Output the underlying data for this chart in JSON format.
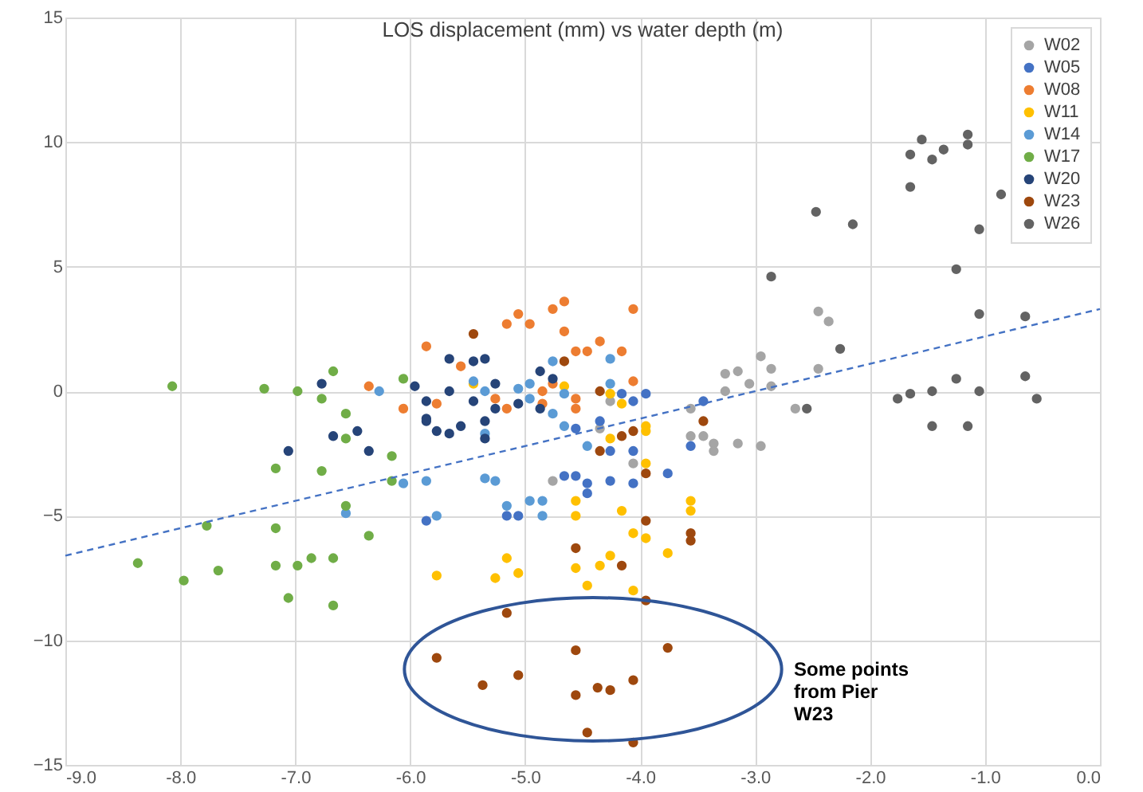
{
  "chart_data": {
    "type": "scatter",
    "title": "LOS displacement (mm) vs water depth (m)",
    "xlim": [
      -9.0,
      0.0
    ],
    "xticks": [
      {
        "value": -9,
        "label": "-9.0"
      },
      {
        "value": -8,
        "label": "-8.0"
      },
      {
        "value": -7,
        "label": "-7.0"
      },
      {
        "value": -6,
        "label": "-6.0"
      },
      {
        "value": -5,
        "label": "-5.0"
      },
      {
        "value": -4,
        "label": "-4.0"
      },
      {
        "value": -3,
        "label": "-3.0"
      },
      {
        "value": -2,
        "label": "-2.0"
      },
      {
        "value": -1,
        "label": "-1.0"
      },
      {
        "value": 0,
        "label": "0.0"
      }
    ],
    "ylim": [
      -15,
      15
    ],
    "yticks": [
      -15,
      -10,
      -5,
      0,
      5,
      10,
      15
    ],
    "grid": true,
    "legend": "top right",
    "marker": "circle",
    "annotations": [
      "Some points from Pier W23"
    ],
    "series": [
      {
        "name": "W02",
        "color": "#a5a5a5",
        "x": [
          -4.76,
          -4.26,
          -4.35,
          -4.06,
          -3.56,
          -3.56,
          -3.45,
          -3.36,
          -3.36,
          -3.26,
          -3.26,
          -3.15,
          -3.15,
          -3.05,
          -2.95,
          -2.95,
          -2.86,
          -2.86,
          -2.65,
          -2.45,
          -2.36,
          -2.45
        ],
        "values": [
          -3.6,
          -0.4,
          -1.5,
          -2.9,
          -0.7,
          -1.8,
          -1.8,
          -2.1,
          -2.4,
          0.7,
          0.0,
          0.8,
          -2.1,
          0.3,
          1.4,
          -2.2,
          0.9,
          0.2,
          -0.7,
          3.2,
          2.8,
          0.9
        ]
      },
      {
        "name": "W05",
        "color": "#4472c4",
        "x": [
          -5.86,
          -5.16,
          -5.06,
          -4.66,
          -4.56,
          -4.56,
          -4.46,
          -4.46,
          -4.35,
          -4.26,
          -4.26,
          -4.16,
          -4.06,
          -4.06,
          -4.06,
          -3.95,
          -3.76,
          -3.56,
          -3.45
        ],
        "values": [
          -5.2,
          -5.0,
          -5.0,
          -3.4,
          -3.4,
          -1.5,
          -3.7,
          -4.1,
          -1.2,
          -2.4,
          -3.6,
          -0.1,
          -0.4,
          -2.4,
          -3.7,
          -0.1,
          -3.3,
          -2.2,
          -0.4
        ]
      },
      {
        "name": "W08",
        "color": "#ed7d31",
        "x": [
          -5.86,
          -6.36,
          -6.06,
          -5.77,
          -5.56,
          -5.16,
          -5.06,
          -4.96,
          -4.76,
          -4.66,
          -4.66,
          -4.56,
          -4.46,
          -4.35,
          -4.16,
          -4.06,
          -4.06,
          -5.26,
          -5.16,
          -4.85,
          -4.85,
          -4.76,
          -4.56,
          -4.56
        ],
        "values": [
          1.8,
          0.2,
          -0.7,
          -0.5,
          1.0,
          2.7,
          3.1,
          2.7,
          3.3,
          3.6,
          2.4,
          1.6,
          1.6,
          2.0,
          1.6,
          3.3,
          0.4,
          -0.3,
          -0.7,
          0.0,
          -0.5,
          0.3,
          -0.3,
          -0.7
        ]
      },
      {
        "name": "W11",
        "color": "#ffc000",
        "x": [
          -5.77,
          -5.45,
          -4.66,
          -4.26,
          -4.16,
          -4.26,
          -3.95,
          -3.95,
          -3.95,
          -4.56,
          -4.56,
          -4.16,
          -4.06,
          -3.95,
          -3.56,
          -3.56,
          -3.76,
          -4.26,
          -4.35,
          -4.56,
          -5.16,
          -5.06,
          -5.26,
          -4.46,
          -4.06
        ],
        "values": [
          -7.4,
          0.3,
          0.2,
          -0.1,
          -0.5,
          -1.9,
          -1.4,
          -1.6,
          -2.9,
          -4.4,
          -5.0,
          -4.8,
          -5.7,
          -5.9,
          -4.4,
          -4.8,
          -6.5,
          -6.6,
          -7.0,
          -7.1,
          -6.7,
          -7.3,
          -7.5,
          -7.8,
          -8.0
        ]
      },
      {
        "name": "W14",
        "color": "#5b9bd5",
        "x": [
          -6.27,
          -6.06,
          -5.86,
          -5.77,
          -6.56,
          -5.45,
          -5.35,
          -5.35,
          -5.35,
          -5.26,
          -5.16,
          -5.06,
          -4.96,
          -4.96,
          -4.76,
          -4.76,
          -4.66,
          -4.66,
          -4.96,
          -4.85,
          -4.85,
          -4.46,
          -4.26,
          -4.26
        ],
        "values": [
          0.0,
          -3.7,
          -3.6,
          -5.0,
          -4.9,
          0.4,
          0.0,
          -1.7,
          -3.5,
          -3.6,
          -4.6,
          0.1,
          0.3,
          -0.3,
          1.2,
          -0.9,
          -0.1,
          -1.4,
          -4.4,
          -4.4,
          -5.0,
          -2.2,
          1.3,
          0.3
        ]
      },
      {
        "name": "W17",
        "color": "#70ad47",
        "x": [
          -8.07,
          -7.27,
          -6.98,
          -6.67,
          -6.77,
          -6.56,
          -6.56,
          -6.06,
          -6.16,
          -7.17,
          -6.77,
          -6.16,
          -6.56,
          -7.77,
          -7.17,
          -6.36,
          -8.37,
          -7.97,
          -7.67,
          -7.17,
          -6.98,
          -6.86,
          -6.67,
          -7.06,
          -6.67
        ],
        "values": [
          0.2,
          0.1,
          0.0,
          0.8,
          -0.3,
          -0.9,
          -1.9,
          0.5,
          -2.6,
          -3.1,
          -3.2,
          -3.6,
          -4.6,
          -5.4,
          -5.5,
          -5.8,
          -6.9,
          -7.6,
          -7.2,
          -7.0,
          -7.0,
          -6.7,
          -6.7,
          -8.3,
          -8.6
        ]
      },
      {
        "name": "W20",
        "color": "#264478",
        "x": [
          -6.77,
          -5.96,
          -5.86,
          -5.86,
          -5.77,
          -6.67,
          -6.46,
          -6.36,
          -7.06,
          -5.66,
          -5.45,
          -5.35,
          -5.66,
          -5.45,
          -5.26,
          -5.26,
          -5.86,
          -5.66,
          -5.56,
          -5.35,
          -5.35,
          -5.06,
          -4.87,
          -4.76,
          -4.87
        ],
        "values": [
          0.3,
          0.2,
          -0.4,
          -1.1,
          -1.6,
          -1.8,
          -1.6,
          -2.4,
          -2.4,
          1.3,
          1.2,
          1.3,
          0.0,
          -0.4,
          0.3,
          -0.7,
          -1.2,
          -1.7,
          -1.4,
          -1.2,
          -1.9,
          -0.5,
          0.8,
          0.5,
          -0.7
        ]
      },
      {
        "name": "W23",
        "color": "#9e480e",
        "x": [
          -5.45,
          -4.66,
          -4.35,
          -4.35,
          -4.16,
          -4.06,
          -3.95,
          -3.95,
          -3.45,
          -3.56,
          -3.56,
          -4.56,
          -4.16,
          -3.95,
          -5.16,
          -5.77,
          -5.37,
          -5.06,
          -4.56,
          -4.56,
          -4.37,
          -4.26,
          -4.06,
          -3.76,
          -4.46,
          -4.06
        ],
        "values": [
          2.3,
          1.2,
          0.0,
          -2.4,
          -1.8,
          -1.6,
          -3.3,
          -5.2,
          -1.2,
          -5.7,
          -6.0,
          -6.3,
          -7.0,
          -8.4,
          -8.9,
          -10.7,
          -11.8,
          -11.4,
          -10.4,
          -12.2,
          -11.9,
          -12.0,
          -11.6,
          -10.3,
          -13.7,
          -14.1
        ]
      },
      {
        "name": "W26",
        "color": "#636363",
        "x": [
          -2.86,
          -2.55,
          -2.26,
          -2.15,
          -2.47,
          -1.76,
          -1.65,
          -1.46,
          -1.46,
          -1.25,
          -1.25,
          -1.15,
          -1.05,
          -1.05,
          -1.05,
          -1.65,
          -1.55,
          -1.46,
          -1.36,
          -1.15,
          -1.15,
          -1.65,
          -0.86,
          -0.65,
          -0.65,
          -0.55
        ],
        "values": [
          4.6,
          -0.7,
          1.7,
          6.7,
          7.2,
          -0.3,
          -0.1,
          0.0,
          -1.4,
          4.9,
          0.5,
          -1.4,
          6.5,
          3.1,
          0.0,
          9.5,
          10.1,
          9.3,
          9.7,
          10.3,
          9.9,
          8.2,
          7.9,
          3.0,
          0.6,
          -0.3
        ]
      },
      {
        "type": "line",
        "color": "#4472c4",
        "line_style": "dashed",
        "marker": "none",
        "x": [
          -9.0,
          0.0
        ],
        "values": [
          -6.6,
          3.3
        ]
      }
    ]
  }
}
